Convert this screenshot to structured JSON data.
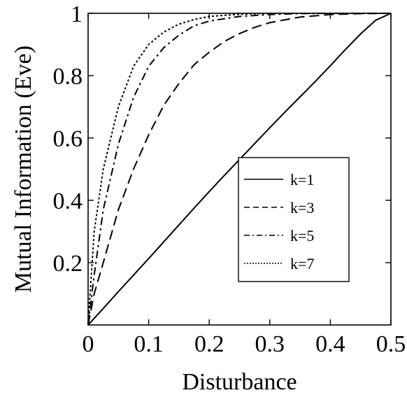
{
  "chart_data": {
    "type": "line",
    "title": "",
    "xlabel": "Disturbance",
    "ylabel": "Mutual Information (Eve)",
    "xlim": [
      0,
      0.5
    ],
    "ylim": [
      0,
      1
    ],
    "xticks": [
      {
        "value": 0,
        "label": "0"
      },
      {
        "value": 0.1,
        "label": "0.1"
      },
      {
        "value": 0.2,
        "label": "0.2"
      },
      {
        "value": 0.3,
        "label": "0.3"
      },
      {
        "value": 0.4,
        "label": "0.4"
      },
      {
        "value": 0.5,
        "label": "0.5"
      }
    ],
    "yticks": [
      {
        "value": 0.2,
        "label": "0.2"
      },
      {
        "value": 0.4,
        "label": "0.4"
      },
      {
        "value": 0.6,
        "label": "0.6"
      },
      {
        "value": 0.8,
        "label": "0.8"
      },
      {
        "value": 1,
        "label": "1"
      }
    ],
    "grid": false,
    "legend_position": "center-right",
    "series": [
      {
        "name": "k=1",
        "dash": "solid",
        "x": [
          0,
          0.025,
          0.05,
          0.075,
          0.1,
          0.125,
          0.15,
          0.175,
          0.2,
          0.225,
          0.25,
          0.275,
          0.3,
          0.325,
          0.35,
          0.375,
          0.4,
          0.425,
          0.45,
          0.475,
          0.5
        ],
        "y": [
          0,
          0.053,
          0.107,
          0.16,
          0.213,
          0.267,
          0.321,
          0.375,
          0.428,
          0.48,
          0.531,
          0.582,
          0.633,
          0.683,
          0.732,
          0.781,
          0.832,
          0.884,
          0.934,
          0.978,
          1.0
        ]
      },
      {
        "name": "k=3",
        "dash": "dashed",
        "x": [
          0,
          0.01,
          0.025,
          0.05,
          0.075,
          0.1,
          0.125,
          0.15,
          0.175,
          0.2,
          0.225,
          0.25,
          0.275,
          0.3,
          0.35,
          0.4,
          0.45,
          0.5
        ],
        "y": [
          0,
          0.1,
          0.2,
          0.37,
          0.5,
          0.61,
          0.705,
          0.775,
          0.835,
          0.875,
          0.91,
          0.935,
          0.955,
          0.97,
          0.988,
          0.996,
          0.999,
          1.0
        ]
      },
      {
        "name": "k=5",
        "dash": "dashdot",
        "x": [
          0,
          0.01,
          0.025,
          0.05,
          0.075,
          0.1,
          0.125,
          0.15,
          0.175,
          0.2,
          0.25,
          0.3,
          0.35,
          0.4,
          0.45,
          0.5
        ],
        "y": [
          0,
          0.16,
          0.37,
          0.58,
          0.73,
          0.83,
          0.89,
          0.93,
          0.96,
          0.975,
          0.99,
          0.996,
          0.999,
          1.0,
          1.0,
          1.0
        ]
      },
      {
        "name": "k=7",
        "dash": "dotted",
        "x": [
          0,
          0.01,
          0.025,
          0.05,
          0.075,
          0.1,
          0.125,
          0.15,
          0.175,
          0.2,
          0.25,
          0.3,
          0.35,
          0.4,
          0.45,
          0.5
        ],
        "y": [
          0,
          0.3,
          0.5,
          0.7,
          0.83,
          0.9,
          0.94,
          0.965,
          0.98,
          0.99,
          0.997,
          1.0,
          1.0,
          1.0,
          1.0,
          1.0
        ]
      }
    ]
  }
}
